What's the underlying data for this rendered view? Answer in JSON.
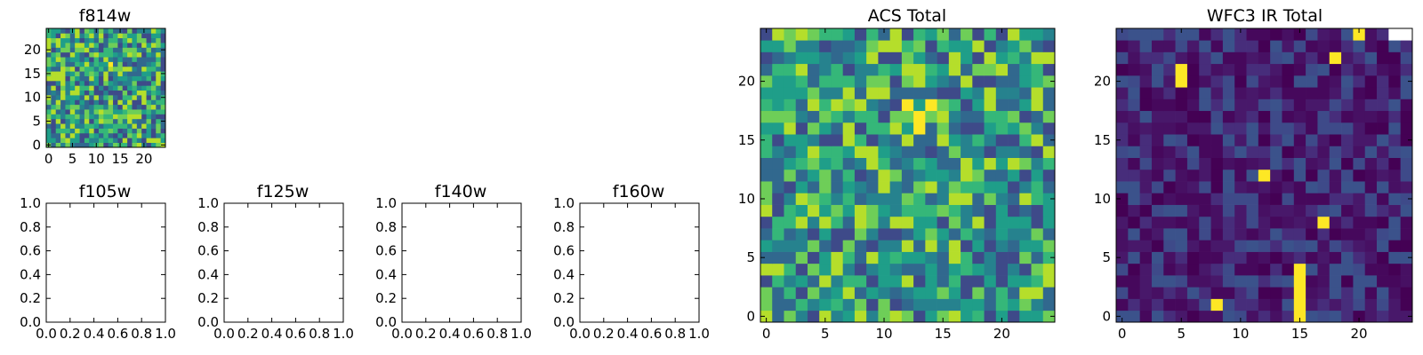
{
  "chart_data": [
    {
      "id": "f814w",
      "type": "heatmap",
      "title": "f814w",
      "xlim": [
        0,
        24
      ],
      "ylim": [
        0,
        24
      ],
      "xticks": [
        "0",
        "5",
        "10",
        "15",
        "20"
      ],
      "yticks": [
        "0",
        "5",
        "10",
        "15",
        "20"
      ],
      "grid_size": [
        25,
        25
      ],
      "colormap": "viridis",
      "features": [
        {
          "x": 13,
          "y": 17,
          "value": "peak"
        }
      ]
    },
    {
      "id": "f105w",
      "type": "heatmap",
      "title": "f105w",
      "empty": true,
      "xlim": [
        0,
        1
      ],
      "ylim": [
        0,
        1
      ],
      "xticks": [
        "0.0",
        "0.2",
        "0.4",
        "0.6",
        "0.8",
        "1.0"
      ],
      "yticks": [
        "0.0",
        "0.2",
        "0.4",
        "0.6",
        "0.8",
        "1.0"
      ]
    },
    {
      "id": "f125w",
      "type": "heatmap",
      "title": "f125w",
      "empty": true,
      "xlim": [
        0,
        1
      ],
      "ylim": [
        0,
        1
      ],
      "xticks": [
        "0.0",
        "0.2",
        "0.4",
        "0.6",
        "0.8",
        "1.0"
      ],
      "yticks": [
        "0.0",
        "0.2",
        "0.4",
        "0.6",
        "0.8",
        "1.0"
      ]
    },
    {
      "id": "f140w",
      "type": "heatmap",
      "title": "f140w",
      "empty": true,
      "xlim": [
        0,
        1
      ],
      "ylim": [
        0,
        1
      ],
      "xticks": [
        "0.0",
        "0.2",
        "0.4",
        "0.6",
        "0.8",
        "1.0"
      ],
      "yticks": [
        "0.0",
        "0.2",
        "0.4",
        "0.6",
        "0.8",
        "1.0"
      ]
    },
    {
      "id": "f160w",
      "type": "heatmap",
      "title": "f160w",
      "empty": true,
      "xlim": [
        0,
        1
      ],
      "ylim": [
        0,
        1
      ],
      "xticks": [
        "0.0",
        "0.2",
        "0.4",
        "0.6",
        "0.8",
        "1.0"
      ],
      "yticks": [
        "0.0",
        "0.2",
        "0.4",
        "0.6",
        "0.8",
        "1.0"
      ]
    },
    {
      "id": "acs_total",
      "type": "heatmap",
      "title": "ACS Total",
      "xlim": [
        0,
        24
      ],
      "ylim": [
        0,
        24
      ],
      "xticks": [
        "0",
        "5",
        "10",
        "15",
        "20"
      ],
      "yticks": [
        "0",
        "5",
        "10",
        "15",
        "20"
      ],
      "grid_size": [
        25,
        25
      ],
      "colormap": "viridis",
      "features": [
        {
          "x": 13,
          "y": 17,
          "value": "peak"
        },
        {
          "x": 12,
          "y": 18,
          "value": "peak"
        },
        {
          "x": 14,
          "y": 18,
          "value": "peak"
        },
        {
          "x": 13,
          "y": 16,
          "value": "peak"
        }
      ]
    },
    {
      "id": "wfc3_ir_total",
      "type": "heatmap",
      "title": "WFC3 IR Total",
      "xlim": [
        0,
        24
      ],
      "ylim": [
        0,
        24
      ],
      "xticks": [
        "0",
        "5",
        "10",
        "15",
        "20"
      ],
      "yticks": [
        "0",
        "5",
        "10",
        "15",
        "20"
      ],
      "grid_size": [
        25,
        25
      ],
      "colormap": "viridis",
      "features": [
        {
          "x": 5,
          "y": 20,
          "value": "peak"
        },
        {
          "x": 5,
          "y": 21,
          "value": "peak"
        },
        {
          "x": 18,
          "y": 22,
          "value": "peak"
        },
        {
          "x": 12,
          "y": 12,
          "value": "peak"
        },
        {
          "x": 17,
          "y": 8,
          "value": "peak"
        },
        {
          "x": 15,
          "y": 0,
          "value": "peak"
        },
        {
          "x": 15,
          "y": 1,
          "value": "peak"
        },
        {
          "x": 15,
          "y": 2,
          "value": "peak"
        },
        {
          "x": 15,
          "y": 3,
          "value": "peak"
        },
        {
          "x": 15,
          "y": 4,
          "value": "peak"
        },
        {
          "x": 8,
          "y": 1,
          "value": "peak"
        },
        {
          "x": 20,
          "y": 24,
          "value": "peak"
        }
      ],
      "masked_cells": [
        {
          "x": 23,
          "y": 24
        },
        {
          "x": 24,
          "y": 24
        }
      ]
    }
  ]
}
